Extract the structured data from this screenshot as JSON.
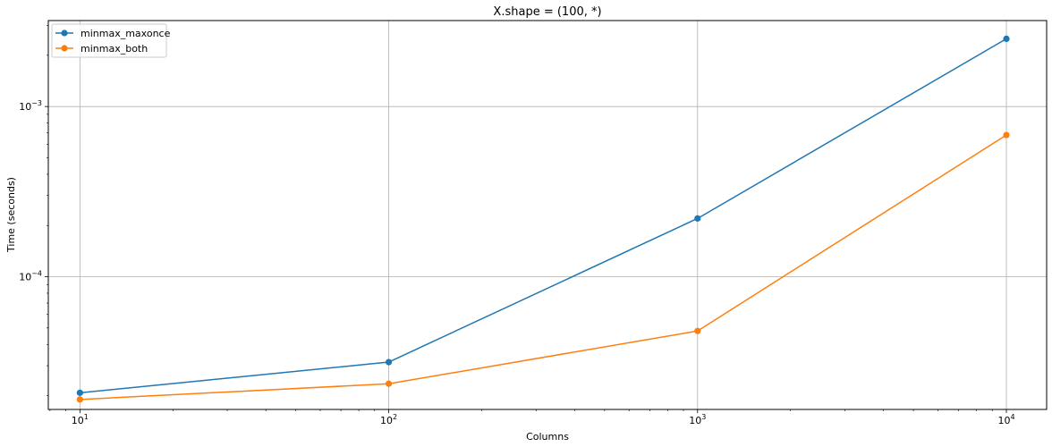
{
  "chart_data": {
    "type": "line",
    "title": "X.shape = (100, *)",
    "xlabel": "Columns",
    "ylabel": "Time (seconds)",
    "xscale": "log",
    "yscale": "log",
    "x": [
      10,
      100,
      1000,
      10000
    ],
    "xlim": [
      7.9,
      13500
    ],
    "ylim": [
      1.66e-05,
      0.0032
    ],
    "x_ticks": [
      {
        "base": "10",
        "exp": "1",
        "value": 10
      },
      {
        "base": "10",
        "exp": "2",
        "value": 100
      },
      {
        "base": "10",
        "exp": "3",
        "value": 1000
      },
      {
        "base": "10",
        "exp": "4",
        "value": 10000
      }
    ],
    "y_ticks": [
      {
        "base": "10",
        "exp": "−4",
        "value": 0.0001
      },
      {
        "base": "10",
        "exp": "−3",
        "value": 0.001
      }
    ],
    "series": [
      {
        "name": "minmax_maxonce",
        "color": "#1f77b4",
        "values": [
          2.08e-05,
          3.15e-05,
          0.00022,
          0.0025
        ]
      },
      {
        "name": "minmax_both",
        "color": "#ff7f0e",
        "values": [
          1.9e-05,
          2.35e-05,
          4.8e-05,
          0.00068
        ]
      }
    ],
    "grid": true,
    "legend_position": "top-left"
  }
}
